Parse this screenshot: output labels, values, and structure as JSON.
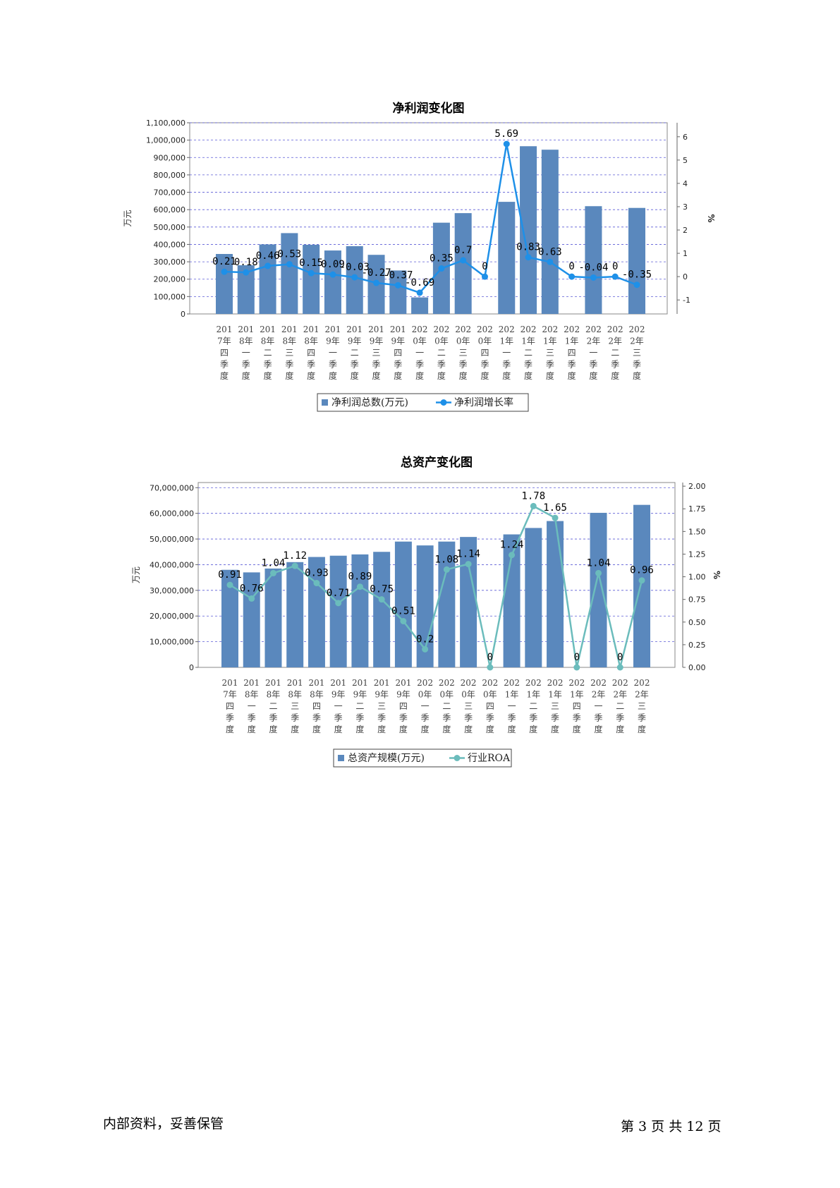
{
  "categories": [
    [
      "201",
      "7年",
      "四",
      "季",
      "度"
    ],
    [
      "201",
      "8年",
      "一",
      "季",
      "度"
    ],
    [
      "201",
      "8年",
      "二",
      "季",
      "度"
    ],
    [
      "201",
      "8年",
      "三",
      "季",
      "度"
    ],
    [
      "201",
      "8年",
      "四",
      "季",
      "度"
    ],
    [
      "201",
      "9年",
      "一",
      "季",
      "度"
    ],
    [
      "201",
      "9年",
      "二",
      "季",
      "度"
    ],
    [
      "201",
      "9年",
      "三",
      "季",
      "度"
    ],
    [
      "201",
      "9年",
      "四",
      "季",
      "度"
    ],
    [
      "202",
      "0年",
      "一",
      "季",
      "度"
    ],
    [
      "202",
      "0年",
      "二",
      "季",
      "度"
    ],
    [
      "202",
      "0年",
      "三",
      "季",
      "度"
    ],
    [
      "202",
      "0年",
      "四",
      "季",
      "度"
    ],
    [
      "202",
      "1年",
      "一",
      "季",
      "度"
    ],
    [
      "202",
      "1年",
      "二",
      "季",
      "度"
    ],
    [
      "202",
      "1年",
      "三",
      "季",
      "度"
    ],
    [
      "202",
      "1年",
      "四",
      "季",
      "度"
    ],
    [
      "202",
      "2年",
      "一",
      "季",
      "度"
    ],
    [
      "202",
      "2年",
      "二",
      "季",
      "度"
    ],
    [
      "202",
      "2年",
      "三",
      "季",
      "度"
    ]
  ],
  "chart_data": [
    {
      "type": "bar",
      "title": "净利润变化图",
      "ylabel": "万元",
      "y2label": "%",
      "ylim": [
        0,
        1100000
      ],
      "y2lim": [
        -1.6,
        6.6
      ],
      "yticks": [
        "0",
        "100,000",
        "200,000",
        "300,000",
        "400,000",
        "500,000",
        "600,000",
        "700,000",
        "800,000",
        "900,000",
        "1,000,000",
        "1,100,000"
      ],
      "y2ticks": [
        "-1",
        "0",
        "1",
        "2",
        "3",
        "4",
        "5",
        "6"
      ],
      "grid": true,
      "legend_position": "bottom",
      "series": [
        {
          "name": "净利润总数(万元)",
          "kind": "bar",
          "color": "#5a88bd",
          "values": [
            345000,
            280000,
            400000,
            465000,
            398000,
            365000,
            390000,
            340000,
            250000,
            95000,
            525000,
            580000,
            0,
            645000,
            965000,
            945000,
            0,
            620000,
            0,
            610000
          ]
        },
        {
          "name": "净利润增长率",
          "kind": "line",
          "color": "#1e90e8",
          "values": [
            0.21,
            0.18,
            0.46,
            0.53,
            0.15,
            0.09,
            -0.03,
            -0.27,
            -0.37,
            -0.69,
            0.35,
            0.7,
            0,
            5.69,
            0.83,
            0.63,
            0,
            -0.04,
            0,
            -0.35
          ],
          "labels": [
            "0.21",
            "0.18",
            "0.46",
            "0.53",
            "0.15",
            "0.09",
            "-0.03",
            "-0.27",
            "-0.37",
            "-0.69",
            "0.35",
            "0.7",
            "0",
            "5.69",
            "0.83",
            "0.63",
            "0",
            "-0.04",
            "0",
            "-0.35"
          ]
        }
      ]
    },
    {
      "type": "bar",
      "title": "总资产变化图",
      "ylabel": "万元",
      "y2label": "%",
      "ylim": [
        0,
        72000000
      ],
      "y2lim": [
        0,
        2.04
      ],
      "yticks": [
        "0",
        "10,000,000",
        "20,000,000",
        "30,000,000",
        "40,000,000",
        "50,000,000",
        "60,000,000",
        "70,000,000"
      ],
      "y2ticks": [
        "0.00",
        "0.25",
        "0.50",
        "0.75",
        "1.00",
        "1.25",
        "1.50",
        "1.75",
        "2.00"
      ],
      "grid": true,
      "legend_position": "bottom",
      "series": [
        {
          "name": "总资产规模(万元)",
          "kind": "bar",
          "color": "#5a88bd",
          "values": [
            38000000,
            37000000,
            38500000,
            41000000,
            43000000,
            43500000,
            44000000,
            45000000,
            49000000,
            47500000,
            49000000,
            50800000,
            0,
            51800000,
            54300000,
            57000000,
            0,
            60200000,
            0,
            63300000
          ]
        },
        {
          "name": "行业ROA",
          "kind": "line",
          "color": "#6bbcbc",
          "values": [
            0.91,
            0.76,
            1.04,
            1.12,
            0.93,
            0.71,
            0.89,
            0.75,
            0.51,
            0.2,
            1.08,
            1.14,
            0,
            1.24,
            1.78,
            1.65,
            0,
            1.04,
            0,
            0.96
          ],
          "labels": [
            "0.91",
            "0.76",
            "1.04",
            "1.12",
            "0.93",
            "0.71",
            "0.89",
            "0.75",
            "0.51",
            "0.2",
            "1.08",
            "1.14",
            "0",
            "1.24",
            "1.78",
            "1.65",
            "0",
            "1.04",
            "0",
            "0.96"
          ]
        }
      ]
    }
  ],
  "footer": {
    "left": "内部资料，妥善保管",
    "right": "第 3 页   共 12 页"
  }
}
